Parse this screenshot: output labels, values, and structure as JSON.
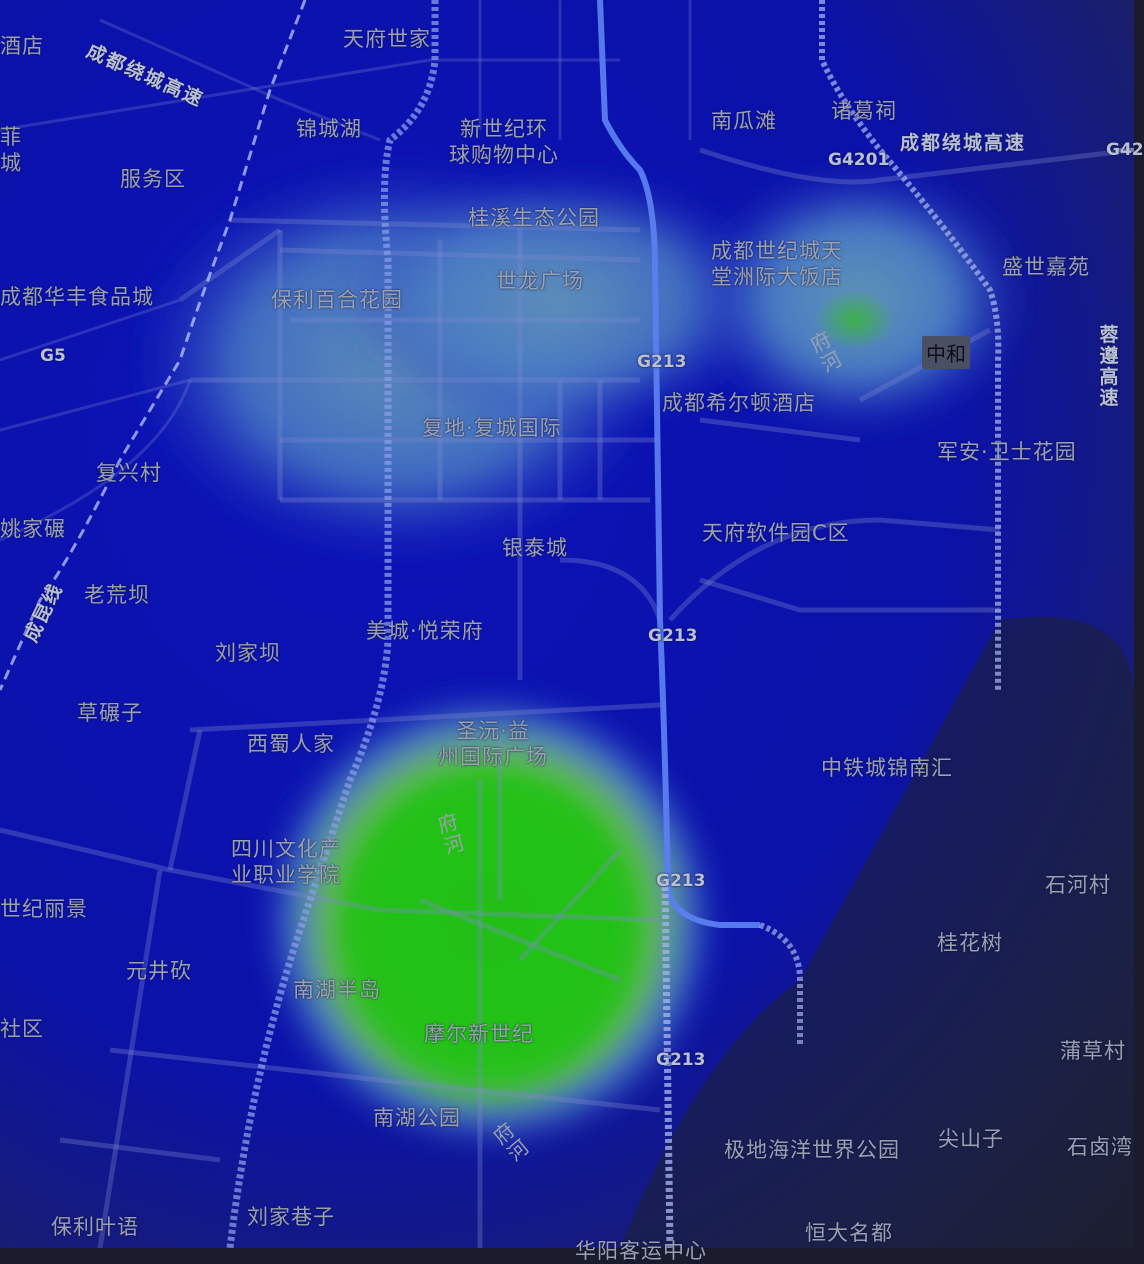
{
  "map": {
    "colors": {
      "background_dark": "#1a1c2e",
      "field_blue": "#0b12b0",
      "heat_low": "#4f9bd0",
      "heat_high": "#17c417",
      "major_road": "#4f6fdc"
    },
    "places": {
      "tianfu_shijia": "天府世家",
      "jiudian": "酒店",
      "jinchenghu": "锦城湖",
      "xinshiji": "新世纪环\n球购物中心",
      "nanguatan": "南瓜滩",
      "zhugeci": "诸葛祠",
      "fuwuqu": "服务区",
      "guixi": "桂溪生态公园",
      "shijicheng_hotel": "成都世纪城天\n堂洲际大饭店",
      "shengshi": "盛世嘉苑",
      "huafeng": "成都华丰食品城",
      "baoli_baihe": "保利百合花园",
      "shilong": "世龙广场",
      "hilton": "成都希尔顿酒店",
      "fudi": "复地·复城国际",
      "junan": "军安·卫士花园",
      "fuxingcun": "复兴村",
      "yaojiaba": "姚家碾",
      "yintaicheng": "银泰城",
      "ruanjianyuan": "天府软件园C区",
      "laohuangba": "老荒坝",
      "meicheng": "美城·悦荣府",
      "liujiaba": "刘家坝",
      "caonianzi": "草碾子",
      "shengyuan": "圣沅·益\n州国际广场",
      "xishu": "西蜀人家",
      "zhongtie": "中铁城锦南汇",
      "sichuan_college": "四川文化产\n业职业学院",
      "shijililing": "世纪丽景",
      "shihecun": "石河村",
      "yuanjingkan": "元井砍",
      "guihuashu": "桂花树",
      "nanhu_bandao": "南湖半岛",
      "shequ": "社区",
      "moer": "摩尔新世纪",
      "pucaocun": "蒲草村",
      "nanhu_park": "南湖公园",
      "jidi": "极地海洋世界公园",
      "jianshanzi": "尖山子",
      "shiyouwan": "石卤湾",
      "baoli_yeyu": "保利叶语",
      "liujia_xiangzi": "刘家巷子",
      "hengda": "恒大名都",
      "left_fragment": "菲\n城",
      "bottom_partial": "华阳客运中心"
    },
    "districts": {
      "zhonghe": "中和"
    },
    "roads": {
      "ring_left": "成都绕城高速",
      "ring_right": "成都绕城高速",
      "rongzun": "蓉遵高速",
      "chengkun": "成昆线",
      "g5": "G5",
      "g4201": "G4201",
      "g42_partial": "G42",
      "g213_a": "G213",
      "g213_b": "G213",
      "g213_c": "G213",
      "g213_d": "G213"
    },
    "rivers": {
      "fuhe_top": "府河",
      "fuhe_mid": "府河",
      "fuhe_bottom": "府河"
    }
  }
}
